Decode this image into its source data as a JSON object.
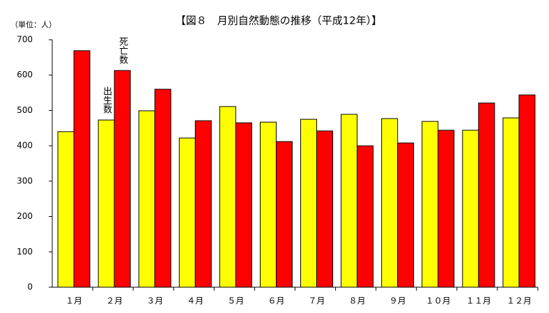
{
  "chart_data": {
    "type": "bar",
    "title": "【図８　月別自然動態の推移（平成12年）】",
    "y_label": "（単位：人）",
    "categories": [
      "１月",
      "２月",
      "３月",
      "４月",
      "５月",
      "６月",
      "７月",
      "８月",
      "９月",
      "１０月",
      "１１月",
      "１２月"
    ],
    "series": [
      {
        "name": "出生数",
        "color": "#ffff00",
        "values": [
          440,
          473,
          499,
          422,
          511,
          467,
          475,
          489,
          477,
          469,
          444,
          479
        ]
      },
      {
        "name": "死亡数",
        "color": "#ff0000",
        "values": [
          669,
          613,
          560,
          471,
          465,
          412,
          442,
          400,
          408,
          444,
          521,
          544
        ]
      }
    ],
    "ylim": [
      0,
      700
    ],
    "yticks": [
      0,
      100,
      200,
      300,
      400,
      500,
      600,
      700
    ],
    "grid": false
  }
}
